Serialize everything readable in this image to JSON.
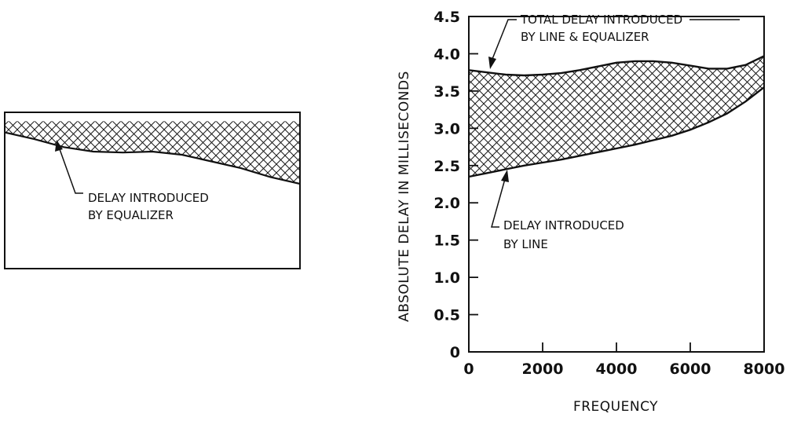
{
  "chart_data": [
    {
      "type": "area",
      "title": "",
      "xlabel": "",
      "ylabel": "",
      "axes_visible": false,
      "x": [
        0,
        1,
        2,
        3,
        4,
        5,
        6,
        7,
        8,
        9,
        10
      ],
      "series": [
        {
          "name": "",
          "values": [
            3.05,
            2.9,
            2.72,
            2.62,
            2.6,
            2.62,
            2.55,
            2.4,
            2.25,
            2.05,
            1.9
          ]
        }
      ],
      "upper_bound": 3.3,
      "ylim": [
        0,
        3.5
      ],
      "fill": "crosshatch",
      "annotations": [
        {
          "lines": [
            "DELAY INTRODUCED",
            "BY EQUALIZER"
          ]
        }
      ]
    },
    {
      "type": "area",
      "title": "",
      "xlabel": "FREQUENCY",
      "ylabel": "ABSOLUTE DELAY IN MILLISECONDS",
      "xlim": [
        0,
        8000
      ],
      "ylim": [
        0,
        4.5
      ],
      "xticks": [
        "0",
        "2000",
        "4000",
        "6000",
        "8000"
      ],
      "xtick_values": [
        0,
        2000,
        4000,
        6000,
        8000
      ],
      "yticks": [
        "0",
        "0.5",
        "1.0",
        "1.5",
        "2.0",
        "2.5",
        "3.0",
        "3.5",
        "4.0",
        "4.5"
      ],
      "ytick_values": [
        0,
        0.5,
        1.0,
        1.5,
        2.0,
        2.5,
        3.0,
        3.5,
        4.0,
        4.5
      ],
      "grid": false,
      "fill": "crosshatch",
      "x": [
        0,
        500,
        1000,
        1500,
        2000,
        2500,
        3000,
        3500,
        4000,
        4500,
        5000,
        5500,
        6000,
        6500,
        7000,
        7500,
        8000
      ],
      "series": [
        {
          "name": "",
          "values": [
            3.78,
            3.75,
            3.72,
            3.71,
            3.72,
            3.74,
            3.78,
            3.83,
            3.88,
            3.9,
            3.9,
            3.88,
            3.84,
            3.8,
            3.8,
            3.85,
            3.97
          ]
        },
        {
          "name": "",
          "values": [
            2.35,
            2.4,
            2.45,
            2.5,
            2.54,
            2.58,
            2.63,
            2.68,
            2.73,
            2.78,
            2.84,
            2.9,
            2.98,
            3.08,
            3.2,
            3.36,
            3.55
          ]
        }
      ],
      "annotations": [
        {
          "lines": [
            "TOTAL DELAY INTRODUCED",
            "BY LINE & EQUALIZER"
          ]
        },
        {
          "lines": [
            "DELAY INTRODUCED",
            "BY LINE"
          ]
        }
      ]
    }
  ]
}
